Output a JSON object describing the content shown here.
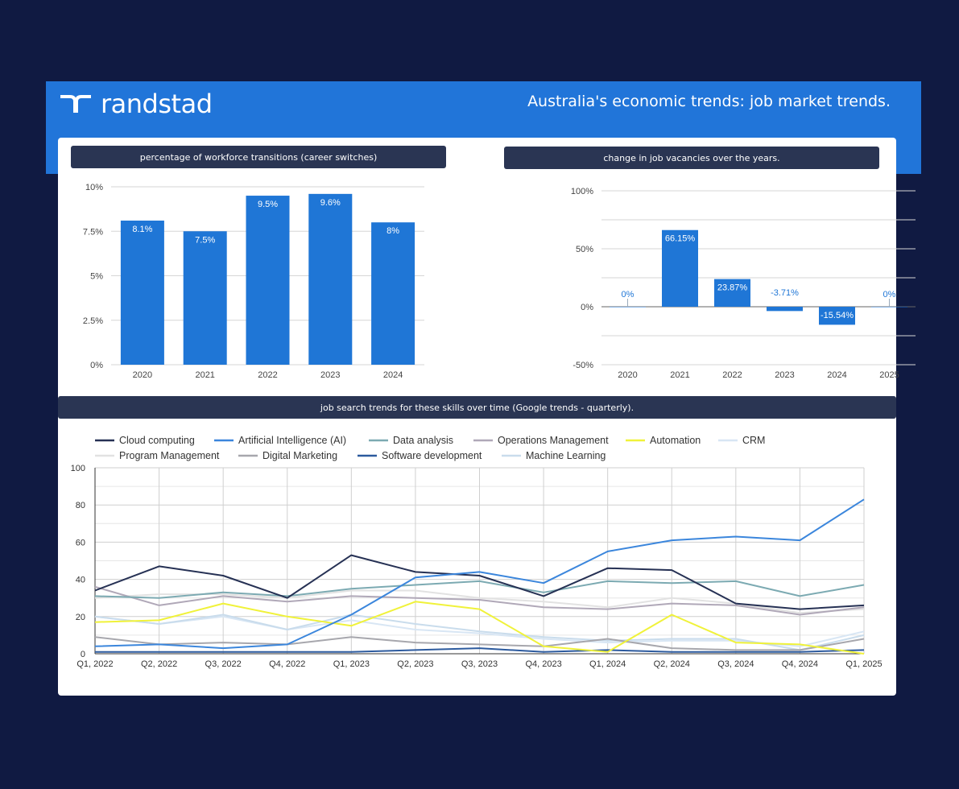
{
  "header": {
    "logo_text": "randstad",
    "title": "Australia's economic trends: job market trends."
  },
  "colors": {
    "background": "#101a42",
    "brand": "#2175d9",
    "panel_title": "#2a3553",
    "bar": "#1f76d6"
  },
  "chart_data": [
    {
      "type": "bar",
      "title": "percentage of workforce transitions (career switches)",
      "categories": [
        "2020",
        "2021",
        "2022",
        "2023",
        "2024"
      ],
      "values": [
        8.1,
        7.5,
        9.5,
        9.6,
        8.0
      ],
      "data_labels": [
        "8.1%",
        "7.5%",
        "9.5%",
        "9.6%",
        "8%"
      ],
      "ylim": [
        0,
        10
      ],
      "yticks": [
        0,
        2.5,
        5,
        7.5,
        10
      ],
      "ytick_labels": [
        "0%",
        "2.5%",
        "5%",
        "7.5%",
        "10%"
      ],
      "grid": true
    },
    {
      "type": "bar",
      "title": "change in job vacancies over the years.",
      "categories": [
        "2020",
        "2021",
        "2022",
        "2023",
        "2024",
        "2025"
      ],
      "values": [
        0,
        66.15,
        23.87,
        -3.71,
        -15.54,
        0
      ],
      "data_labels": [
        "0%",
        "66.15%",
        "23.87%",
        "-3.71%",
        "-15.54%",
        "0%"
      ],
      "ylim": [
        -50,
        100
      ],
      "yticks": [
        -50,
        0,
        50,
        100
      ],
      "ytick_labels": [
        "-50%",
        "0%",
        "50%",
        "100%"
      ],
      "grid": true
    },
    {
      "type": "line",
      "title": "job search trends for these skills over time (Google trends - quarterly).",
      "x": [
        "Q1, 2022",
        "Q2, 2022",
        "Q3, 2022",
        "Q4, 2022",
        "Q1, 2023",
        "Q2, 2023",
        "Q3, 2023",
        "Q4, 2023",
        "Q1, 2024",
        "Q2, 2024",
        "Q3, 2024",
        "Q4, 2024",
        "Q1, 2025"
      ],
      "ylim": [
        0,
        100
      ],
      "yticks": [
        0,
        20,
        40,
        60,
        80,
        100
      ],
      "ytick_labels": [
        "0",
        "20",
        "40",
        "60",
        "80",
        "100"
      ],
      "legend_position": "top",
      "grid": true,
      "series": [
        {
          "name": "Cloud computing",
          "color": "#263154",
          "values": [
            34,
            47,
            42,
            30,
            53,
            44,
            42,
            31,
            46,
            45,
            27,
            24,
            26
          ]
        },
        {
          "name": "Artificial Intelligence (AI)",
          "color": "#3b86dc",
          "values": [
            4,
            5,
            3,
            5,
            21,
            41,
            44,
            38,
            55,
            61,
            63,
            61,
            83
          ]
        },
        {
          "name": "Data analysis",
          "color": "#7caab2",
          "values": [
            31,
            30,
            33,
            31,
            35,
            37,
            39,
            33,
            39,
            38,
            39,
            31,
            37
          ]
        },
        {
          "name": "Operations Management",
          "color": "#b0a8b8",
          "values": [
            36,
            26,
            31,
            28,
            31,
            30,
            29,
            25,
            24,
            27,
            26,
            21,
            25
          ]
        },
        {
          "name": "Automation",
          "color": "#f0f23a",
          "values": [
            17,
            18,
            27,
            20,
            15,
            28,
            24,
            4,
            1,
            21,
            6,
            5,
            0
          ]
        },
        {
          "name": "CRM",
          "color": "#d8e6f4",
          "values": [
            20,
            16,
            20,
            13,
            18,
            13,
            11,
            8,
            6,
            7,
            7,
            4,
            12
          ]
        },
        {
          "name": "Program Management",
          "color": "#e2e2e2",
          "values": [
            30,
            32,
            32,
            30,
            34,
            34,
            30,
            28,
            25,
            30,
            27,
            22,
            24
          ]
        },
        {
          "name": "Digital Marketing",
          "color": "#a7a7ad",
          "values": [
            9,
            5,
            6,
            5,
            9,
            6,
            5,
            4,
            8,
            3,
            2,
            2,
            8
          ]
        },
        {
          "name": "Software development",
          "color": "#2c5a9e",
          "values": [
            1,
            1,
            1,
            1,
            1,
            2,
            3,
            1,
            2,
            1,
            1,
            1,
            2
          ]
        },
        {
          "name": "Machine Learning",
          "color": "#c9dcec",
          "values": [
            20,
            16,
            21,
            13,
            21,
            16,
            12,
            9,
            7,
            8,
            8,
            2,
            10
          ]
        }
      ]
    }
  ]
}
